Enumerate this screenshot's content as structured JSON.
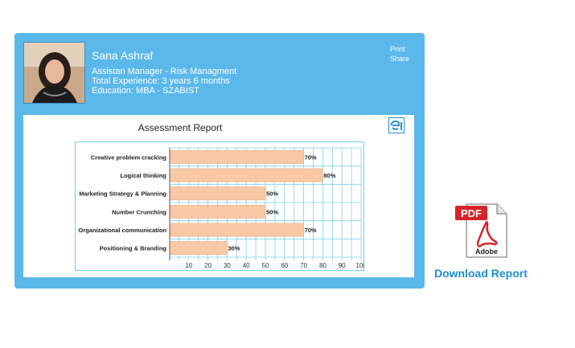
{
  "profile": {
    "name": "Sana Ashraf",
    "position": "Assistan Manager - Risk Managment",
    "experience": "Total Experience: 3 years 6 months",
    "education": "Education: MBA - SZABIST"
  },
  "actions": {
    "print": "Print",
    "share": "Share"
  },
  "report": {
    "title": "Assessment Report"
  },
  "download": {
    "pdf_label": "PDF",
    "adobe_label": "Adobe",
    "link_text": "Download Report"
  },
  "colors": {
    "card": "#5bb8ea",
    "bar": "#f9c8a5",
    "bar_border": "#e8a984",
    "grid": "#7fd0ec",
    "link": "#1f8fd0"
  },
  "chart_data": {
    "type": "bar",
    "orientation": "horizontal",
    "title": "Assessment Report",
    "categories": [
      "Creative problem cracking",
      "Logical thinking",
      "Marketing Strategy & Planning",
      "Number Crunching",
      "Organizational communication",
      "Positioning & Branding"
    ],
    "values": [
      70,
      80,
      50,
      50,
      70,
      30
    ],
    "data_labels": [
      "70%",
      "80%",
      "50%",
      "50%",
      "70%",
      "30%"
    ],
    "x_ticks": [
      10,
      20,
      30,
      40,
      50,
      60,
      70,
      80,
      90,
      100
    ],
    "xlim": [
      0,
      100
    ],
    "grid": true
  }
}
